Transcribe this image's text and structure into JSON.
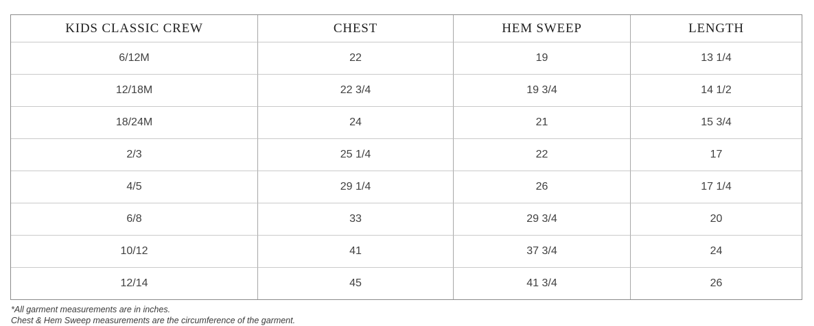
{
  "chart_data": {
    "type": "table",
    "title": "KIDS CLASSIC CREW",
    "headers": [
      "KIDS CLASSIC CREW",
      "CHEST",
      "HEM SWEEP",
      "LENGTH"
    ],
    "rows": [
      [
        "6/12M",
        "22",
        "19",
        "13 1/4"
      ],
      [
        "12/18M",
        "22 3/4",
        "19 3/4",
        "14 1/2"
      ],
      [
        "18/24M",
        "24",
        "21",
        "15 3/4"
      ],
      [
        "2/3",
        "25 1/4",
        "22",
        "17"
      ],
      [
        "4/5",
        "29 1/4",
        "26",
        "17 1/4"
      ],
      [
        "6/8",
        "33",
        "29 3/4",
        "20"
      ],
      [
        "10/12",
        "41",
        "37 3/4",
        "24"
      ],
      [
        "12/14",
        "45",
        "41 3/4",
        "26"
      ]
    ],
    "notes": [
      "*All garment measurements are in inches.",
      "Chest & Hem Sweep measurements are the circumference of the garment."
    ]
  },
  "colors": {
    "outer_border": "#8a8a8a",
    "vertical_border": "#a6a6a6",
    "horizontal_border": "#c9c9c9",
    "header_text": "#1f1f1f",
    "body_text": "#404040",
    "background": "#ffffff"
  }
}
